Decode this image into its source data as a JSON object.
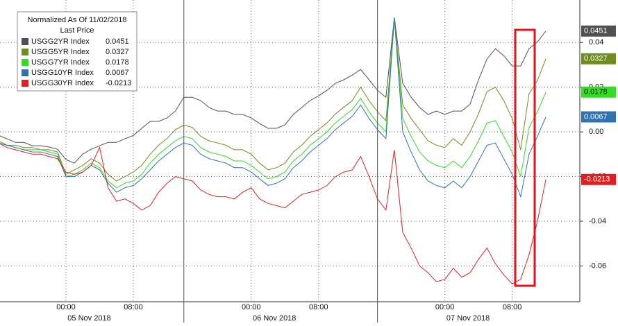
{
  "chart_data": {
    "type": "line",
    "legend_title": "Normalized As Of 11/02/2018",
    "legend_subtitle": "Last Price",
    "legend": "upper left",
    "grid": true,
    "categories": [
      null,
      null,
      null,
      null,
      null,
      null,
      null,
      null,
      "00:00",
      null,
      null,
      null,
      null,
      null,
      null,
      null,
      "08:00",
      null,
      null,
      null,
      null,
      null,
      null,
      null,
      null,
      null,
      null,
      null,
      null,
      null,
      "00:00",
      null,
      null,
      null,
      null,
      null,
      null,
      null,
      "08:00",
      null,
      null,
      null,
      null,
      null,
      null,
      null,
      null,
      null,
      null,
      null,
      null,
      null,
      null,
      "00:00",
      null,
      null,
      null,
      null,
      null,
      null,
      null,
      "08:00",
      null,
      null,
      null,
      null
    ],
    "x_groups": [
      "05 Nov 2018",
      "06 Nov 2018",
      "07 Nov 2018"
    ],
    "ylim": [
      -0.076,
      0.059
    ],
    "yticks": [
      -0.06,
      -0.04,
      -0.02,
      {
        "value": 0,
        "label": "0.00"
      },
      0.02,
      0.04
    ],
    "series": [
      {
        "name": "USGG2YR Index",
        "color": "#505050",
        "values": [
          -0.0016,
          -0.0031,
          -0.0047,
          -0.0047,
          -0.0062,
          -0.0062,
          -0.0068,
          -0.0078,
          -0.0124,
          -0.014,
          -0.0099,
          -0.0078,
          -0.0062,
          -0.0047,
          -0.0047,
          -0.0031,
          -0.0016,
          0.0016,
          0.0047,
          0.0047,
          0.0062,
          0.0093,
          0.0155,
          0.0155,
          0.014,
          0.0109,
          0.0093,
          0.0093,
          0.0078,
          0.0078,
          0.0062,
          0.0037,
          0.0016,
          0.0016,
          0.0031,
          0.0078,
          0.0109,
          0.014,
          0.0161,
          0.0186,
          0.0217,
          0.0233,
          0.0254,
          0.0279,
          0.0233,
          0.0186,
          0.0155,
          0.0512,
          0.0217,
          0.0155,
          0.0109,
          0.0078,
          0.0093,
          0.0078,
          0.0093,
          0.0093,
          0.0124,
          0.0233,
          0.0326,
          0.0372,
          0.0341,
          0.0295,
          0.0295,
          0.0372,
          0.0403,
          0.0451
        ]
      },
      {
        "name": "USGG5YR Index",
        "color": "#6f8c1e",
        "values": [
          -0.004,
          -0.006,
          -0.006,
          -0.007,
          -0.007,
          -0.008,
          -0.008,
          -0.009,
          -0.019,
          -0.017,
          -0.015,
          -0.012,
          -0.014,
          -0.019,
          -0.022,
          -0.02,
          -0.018,
          -0.015,
          -0.01,
          -0.006,
          -0.003,
          0.001,
          0.003,
          0.002,
          -0.002,
          -0.004,
          -0.005,
          -0.006,
          -0.008,
          -0.008,
          -0.01,
          -0.014,
          -0.017,
          -0.016,
          -0.014,
          -0.009,
          -0.006,
          -0.002,
          0.001,
          0.004,
          0.008,
          0.011,
          0.014,
          0.02,
          0.014,
          0.009,
          0.005,
          0.051,
          0.012,
          0.006,
          0.001,
          -0.004,
          -0.006,
          -0.007,
          -0.003,
          -0.006,
          0,
          0.008,
          0.018,
          0.02,
          0.014,
          0.006,
          -0.008,
          0.017,
          0.023,
          0.0327
        ]
      },
      {
        "name": "USGG7YR Index",
        "color": "#33dd22",
        "values": [
          -0.005,
          -0.006,
          -0.007,
          -0.008,
          -0.008,
          -0.008,
          -0.009,
          -0.01,
          -0.02,
          -0.019,
          -0.017,
          -0.014,
          -0.016,
          -0.022,
          -0.025,
          -0.023,
          -0.022,
          -0.019,
          -0.014,
          -0.01,
          -0.007,
          -0.004,
          -0.002,
          -0.003,
          -0.007,
          -0.009,
          -0.01,
          -0.011,
          -0.013,
          -0.013,
          -0.015,
          -0.018,
          -0.021,
          -0.02,
          -0.018,
          -0.013,
          -0.01,
          -0.006,
          -0.003,
          0,
          0.004,
          0.007,
          0.01,
          0.015,
          0.009,
          0.004,
          0,
          0.051,
          0.006,
          -0.002,
          -0.009,
          -0.013,
          -0.015,
          -0.016,
          -0.013,
          -0.016,
          -0.011,
          -0.004,
          0.004,
          0.005,
          -0.002,
          -0.009,
          -0.02,
          0.002,
          0.009,
          0.0178
        ]
      },
      {
        "name": "USGG10YR Index",
        "color": "#2e72b0",
        "values": [
          -0.005,
          -0.006,
          -0.007,
          -0.008,
          -0.009,
          -0.009,
          -0.01,
          -0.011,
          -0.02,
          -0.02,
          -0.018,
          -0.015,
          -0.017,
          -0.023,
          -0.027,
          -0.025,
          -0.024,
          -0.021,
          -0.017,
          -0.013,
          -0.01,
          -0.007,
          -0.005,
          -0.006,
          -0.01,
          -0.012,
          -0.013,
          -0.014,
          -0.016,
          -0.016,
          -0.018,
          -0.021,
          -0.024,
          -0.023,
          -0.021,
          -0.016,
          -0.013,
          -0.009,
          -0.006,
          -0.003,
          0.001,
          0.004,
          0.007,
          0.012,
          0.006,
          0.001,
          -0.003,
          0.051,
          0,
          -0.009,
          -0.017,
          -0.022,
          -0.024,
          -0.025,
          -0.022,
          -0.025,
          -0.02,
          -0.013,
          -0.006,
          -0.005,
          -0.012,
          -0.019,
          -0.029,
          -0.01,
          -0.002,
          0.0067
        ]
      },
      {
        "name": "USGG30YR Index",
        "color": "#e02020",
        "values": [
          -0.005,
          -0.007,
          -0.008,
          -0.009,
          -0.01,
          -0.01,
          -0.011,
          -0.012,
          -0.018,
          -0.019,
          -0.018,
          -0.015,
          -0.007,
          -0.025,
          -0.031,
          -0.03,
          -0.032,
          -0.035,
          -0.033,
          -0.027,
          -0.023,
          -0.02,
          -0.021,
          -0.022,
          -0.026,
          -0.028,
          -0.029,
          -0.029,
          -0.03,
          -0.027,
          -0.025,
          -0.03,
          -0.032,
          -0.033,
          -0.034,
          -0.031,
          -0.028,
          -0.027,
          -0.026,
          -0.024,
          -0.02,
          -0.018,
          -0.017,
          -0.011,
          -0.02,
          -0.03,
          -0.035,
          -0.008,
          -0.045,
          -0.052,
          -0.06,
          -0.063,
          -0.067,
          -0.066,
          -0.061,
          -0.065,
          -0.063,
          -0.057,
          -0.052,
          -0.059,
          -0.064,
          -0.068,
          -0.066,
          -0.055,
          -0.04,
          -0.0213
        ]
      }
    ]
  }
}
